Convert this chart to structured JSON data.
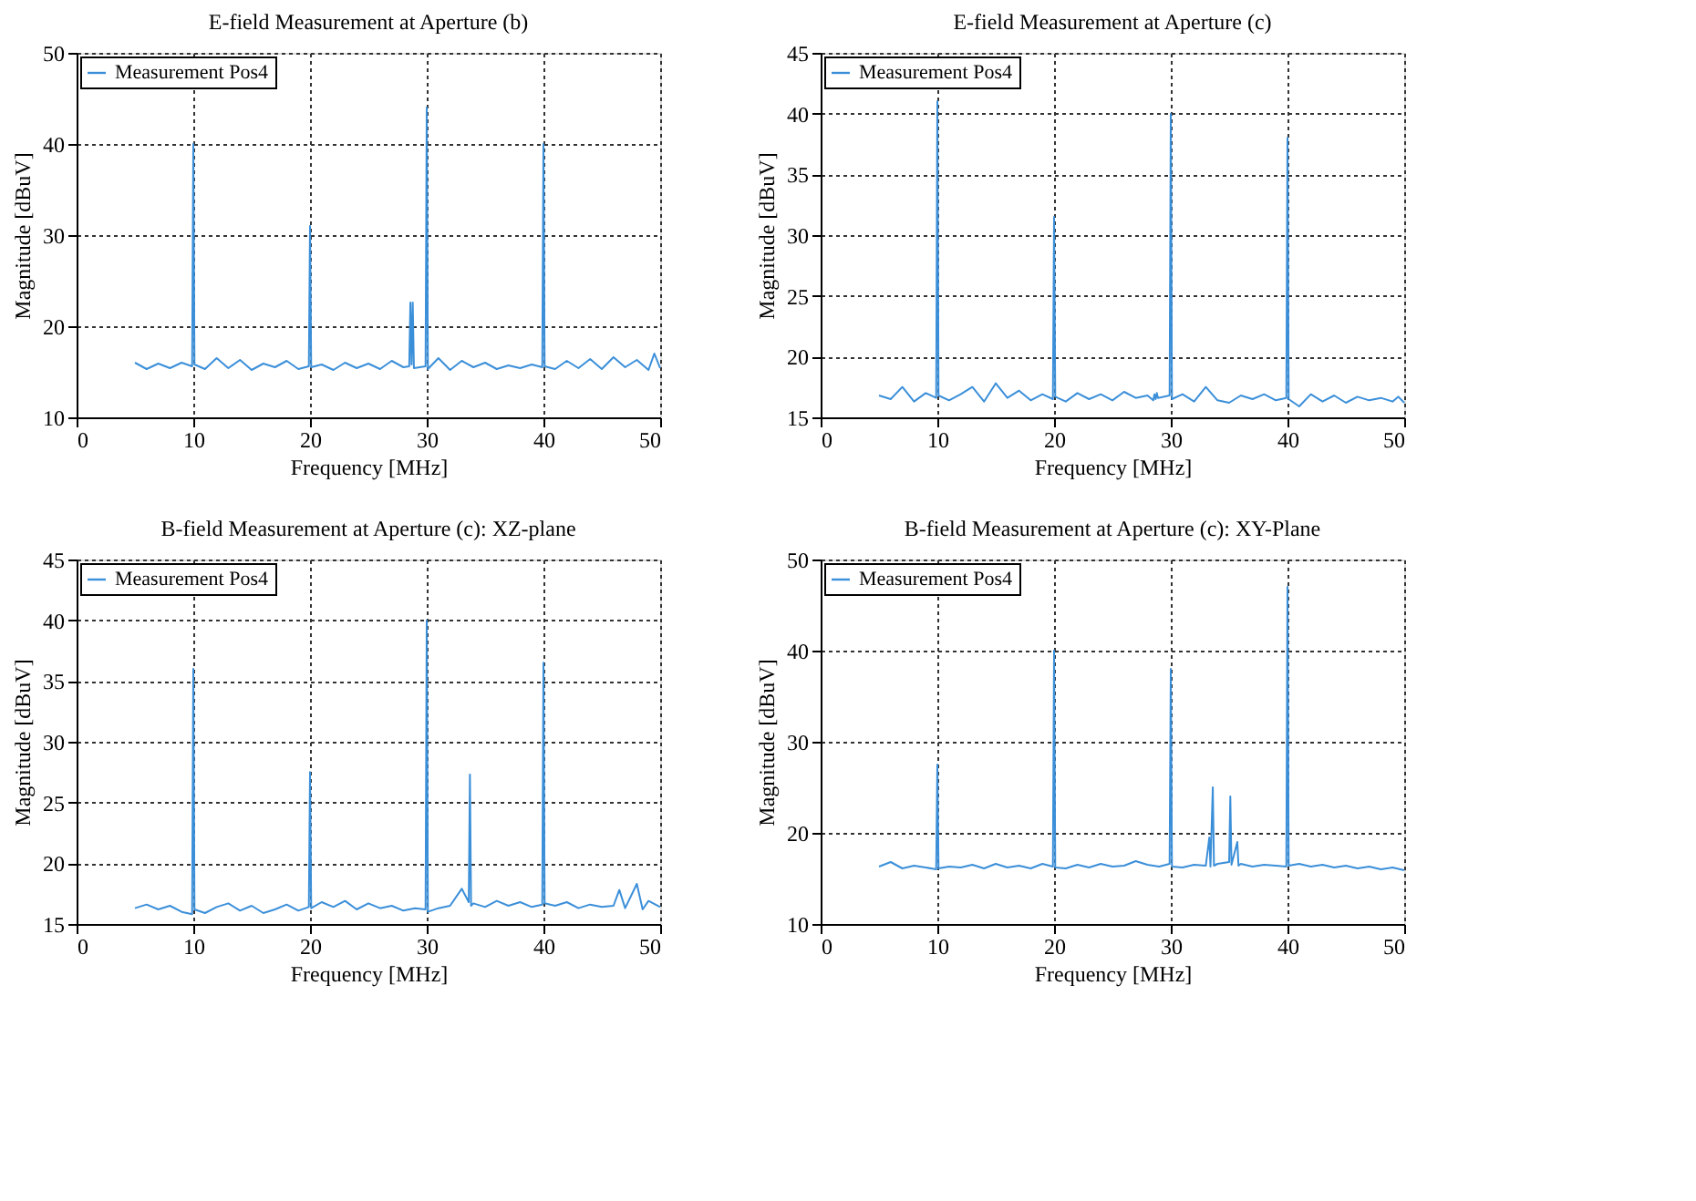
{
  "chart_data": [
    {
      "type": "line",
      "title": "E-field Measurement at Aperture (b)",
      "xlabel": "Frequency [MHz]",
      "ylabel": "Magnitude [dBuV]",
      "xlim": [
        0,
        50
      ],
      "xticks": [
        0,
        10,
        20,
        30,
        40,
        50
      ],
      "ylim": [
        10,
        50
      ],
      "yticks": [
        10,
        20,
        30,
        40,
        50
      ],
      "grid": true,
      "legend": "top left",
      "series": [
        {
          "name": "Measurement Pos4",
          "color": "#3b8fd9",
          "x": [
            5,
            6,
            7,
            8,
            9,
            9.9,
            10,
            10.1,
            11,
            12,
            13,
            14,
            15,
            16,
            17,
            18,
            19,
            19.9,
            20,
            20.1,
            21,
            22,
            23,
            24,
            25,
            26,
            27,
            28,
            28.5,
            28.6,
            28.7,
            28.8,
            28.9,
            29.9,
            30,
            30.1,
            31,
            32,
            33,
            34,
            35,
            36,
            37,
            38,
            39,
            39.9,
            40,
            40.1,
            41,
            42,
            43,
            44,
            45,
            46,
            47,
            48,
            49,
            49.5,
            50
          ],
          "values": [
            16,
            15.3,
            15.9,
            15.4,
            16,
            15.6,
            40,
            15.8,
            15.3,
            16.5,
            15.4,
            16.3,
            15.2,
            15.9,
            15.5,
            16.2,
            15.3,
            15.6,
            31,
            15.5,
            15.8,
            15.2,
            16,
            15.4,
            15.9,
            15.3,
            16.2,
            15.5,
            15.6,
            22.6,
            15.8,
            22.6,
            15.4,
            15.6,
            44,
            15.3,
            16.5,
            15.2,
            16.2,
            15.5,
            16,
            15.3,
            15.7,
            15.4,
            15.8,
            15.5,
            40,
            15.6,
            15.3,
            16.2,
            15.4,
            16.4,
            15.3,
            16.6,
            15.5,
            16.3,
            15.2,
            17,
            15.4
          ]
        }
      ]
    },
    {
      "type": "line",
      "title": "E-field Measurement at Aperture (c)",
      "xlabel": "Frequency [MHz]",
      "ylabel": "Magnitude [dBuV]",
      "xlim": [
        0,
        50
      ],
      "xticks": [
        0,
        10,
        20,
        30,
        40,
        50
      ],
      "ylim": [
        15,
        45
      ],
      "yticks": [
        15,
        20,
        25,
        30,
        35,
        40,
        45
      ],
      "grid": true,
      "legend": "top left",
      "series": [
        {
          "name": "Measurement Pos4",
          "color": "#3b8fd9",
          "x": [
            5,
            6,
            7,
            8,
            9,
            9.9,
            10,
            10.1,
            11,
            12,
            13,
            14,
            15,
            16,
            17,
            18,
            19,
            19.9,
            20,
            20.1,
            21,
            22,
            23,
            24,
            25,
            26,
            27,
            28,
            28.5,
            28.6,
            28.7,
            28.8,
            28.9,
            29.9,
            30,
            30.1,
            31,
            32,
            33,
            34,
            35,
            36,
            37,
            38,
            39,
            39.9,
            40,
            40.1,
            41,
            42,
            43,
            44,
            45,
            46,
            47,
            48,
            49,
            49.5,
            50
          ],
          "values": [
            16.8,
            16.5,
            17.5,
            16.3,
            17,
            16.6,
            41,
            16.8,
            16.4,
            16.9,
            17.5,
            16.3,
            17.8,
            16.6,
            17.2,
            16.4,
            16.9,
            16.5,
            31.5,
            16.7,
            16.3,
            17,
            16.5,
            16.9,
            16.4,
            17.1,
            16.6,
            16.8,
            16.4,
            16.9,
            16.5,
            17,
            16.6,
            16.8,
            40,
            16.5,
            16.9,
            16.3,
            17.5,
            16.4,
            16.2,
            16.8,
            16.5,
            16.9,
            16.4,
            16.6,
            38,
            16.5,
            15.9,
            16.9,
            16.3,
            16.8,
            16.2,
            16.7,
            16.4,
            16.6,
            16.3,
            16.7,
            16.2
          ]
        }
      ]
    },
    {
      "type": "line",
      "title": "B-field Measurement at Aperture (c): XZ-plane",
      "xlabel": "Frequency [MHz]",
      "ylabel": "Magnitude [dBuV]",
      "xlim": [
        0,
        50
      ],
      "xticks": [
        0,
        10,
        20,
        30,
        40,
        50
      ],
      "ylim": [
        15,
        45
      ],
      "yticks": [
        15,
        20,
        25,
        30,
        35,
        40,
        45
      ],
      "grid": true,
      "legend": "top left",
      "series": [
        {
          "name": "Measurement Pos4",
          "color": "#3b8fd9",
          "x": [
            5,
            6,
            7,
            8,
            9,
            9.9,
            10,
            10.1,
            11,
            12,
            13,
            14,
            15,
            16,
            17,
            18,
            19,
            19.9,
            20,
            20.1,
            21,
            22,
            23,
            24,
            25,
            26,
            27,
            28,
            29,
            29.9,
            30,
            30.1,
            31,
            32,
            33,
            33.6,
            33.7,
            33.8,
            34,
            35,
            36,
            37,
            38,
            39,
            39.9,
            40,
            40.1,
            41,
            42,
            43,
            44,
            45,
            46,
            46.5,
            47,
            48,
            48.5,
            49,
            50
          ],
          "values": [
            16.3,
            16.6,
            16.2,
            16.5,
            16,
            15.8,
            36,
            16.2,
            15.9,
            16.4,
            16.7,
            16.1,
            16.5,
            15.9,
            16.2,
            16.6,
            16.1,
            16.4,
            27.5,
            16.3,
            16.8,
            16.4,
            16.9,
            16.2,
            16.7,
            16.3,
            16.5,
            16.1,
            16.3,
            16.2,
            40,
            16,
            16.3,
            16.5,
            17.9,
            16.8,
            27.3,
            16.5,
            16.7,
            16.4,
            16.9,
            16.5,
            16.8,
            16.4,
            16.6,
            36.5,
            16.7,
            16.5,
            16.8,
            16.3,
            16.6,
            16.4,
            16.5,
            17.8,
            16.3,
            18.3,
            16.2,
            16.9,
            16.4
          ]
        }
      ]
    },
    {
      "type": "line",
      "title": "B-field Measurement at Aperture (c): XY-Plane",
      "xlabel": "Frequency [MHz]",
      "ylabel": "Magnitude [dBuV]",
      "xlim": [
        0,
        50
      ],
      "xticks": [
        0,
        10,
        20,
        30,
        40,
        50
      ],
      "ylim": [
        10,
        50
      ],
      "yticks": [
        10,
        20,
        30,
        40,
        50
      ],
      "grid": true,
      "legend": "top left",
      "series": [
        {
          "name": "Measurement Pos4",
          "color": "#3b8fd9",
          "x": [
            5,
            6,
            7,
            8,
            9,
            9.9,
            10,
            10.1,
            11,
            12,
            13,
            14,
            15,
            16,
            17,
            18,
            19,
            19.9,
            20,
            20.1,
            21,
            22,
            23,
            24,
            25,
            26,
            27,
            28,
            29,
            29.9,
            30,
            30.1,
            31,
            32,
            33,
            33.3,
            33.4,
            33.6,
            33.7,
            34,
            35,
            35.1,
            35.2,
            35.7,
            35.8,
            36,
            37,
            38,
            39,
            39.9,
            40,
            40.1,
            41,
            42,
            43,
            44,
            45,
            46,
            47,
            48,
            49,
            50
          ],
          "values": [
            16.3,
            16.8,
            16.1,
            16.4,
            16.2,
            16,
            27.5,
            16.1,
            16.3,
            16.2,
            16.5,
            16.1,
            16.6,
            16.2,
            16.4,
            16.1,
            16.6,
            16.3,
            40,
            16.2,
            16.1,
            16.5,
            16.2,
            16.6,
            16.3,
            16.4,
            16.9,
            16.5,
            16.3,
            16.6,
            38,
            16.3,
            16.2,
            16.5,
            16.4,
            19.5,
            16.3,
            25,
            16.4,
            16.6,
            16.8,
            24,
            16.5,
            19,
            16.4,
            16.6,
            16.3,
            16.5,
            16.4,
            16.3,
            47,
            16.4,
            16.6,
            16.3,
            16.5,
            16.2,
            16.4,
            16.1,
            16.3,
            16,
            16.2,
            15.9
          ]
        }
      ]
    }
  ]
}
